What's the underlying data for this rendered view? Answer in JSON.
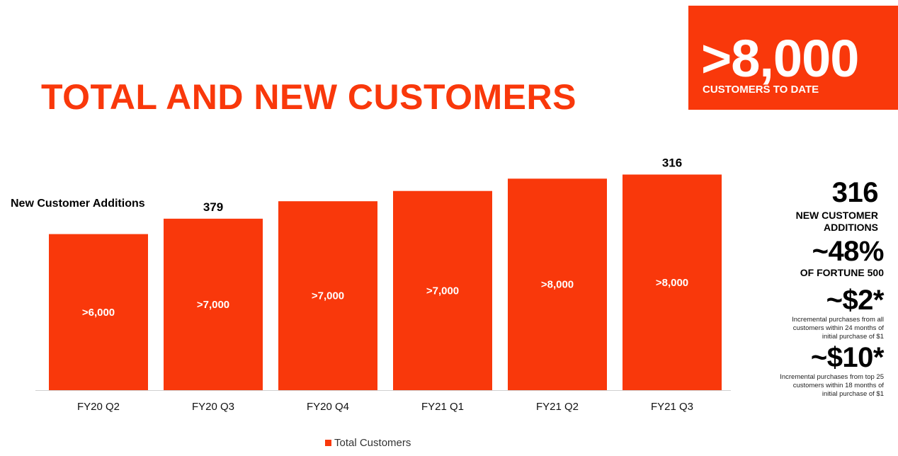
{
  "title": "TOTAL AND NEW CUSTOMERS",
  "hero": {
    "value": ">8,000",
    "label": "CUSTOMERS TO DATE"
  },
  "colors": {
    "accent": "#f9380b"
  },
  "chart_data": {
    "type": "bar",
    "label": "New Customer Additions",
    "categories": [
      "FY20 Q2",
      "FY20 Q3",
      "FY20 Q4",
      "FY21 Q1",
      "FY21 Q2",
      "FY21 Q3"
    ],
    "series": [
      {
        "name": "Total Customers",
        "values": [
          6000,
          7000,
          7000,
          7000,
          8000,
          8000
        ],
        "bar_labels": [
          ">6,000",
          ">7,000",
          ">7,000",
          ">7,000",
          ">8,000",
          ">8,000"
        ]
      }
    ],
    "relative_heights": [
      0.76,
      0.835,
      0.92,
      0.97,
      1.03,
      1.05
    ],
    "annotations": [
      {
        "category": "FY20 Q3",
        "text": "379"
      },
      {
        "category": "FY21 Q3",
        "text": "316"
      }
    ],
    "legend": {
      "position": "bottom-center",
      "label": "Total Customers"
    },
    "grid": false
  },
  "stats": [
    {
      "value": "316",
      "label": "NEW CUSTOMER ADDITIONS",
      "desc": ""
    },
    {
      "value": "~48%",
      "label": "OF FORTUNE 500",
      "desc": ""
    },
    {
      "value": "~$2*",
      "label": "",
      "desc": "Incremental purchases from all customers within 24 months of initial purchase of $1"
    },
    {
      "value": "~$10*",
      "label": "",
      "desc": "Incremental purchases from top 25 customers within 18 months of initial purchase of $1"
    }
  ]
}
